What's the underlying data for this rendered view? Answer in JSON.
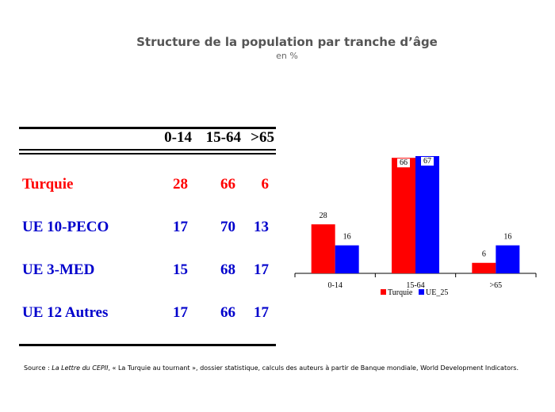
{
  "title": "Structure de la population par tranche d’âge",
  "subtitle": "en %",
  "table": {
    "headers": [
      "0-14",
      "15-64",
      ">65"
    ],
    "rows": [
      {
        "label": "Turquie",
        "values": [
          "28",
          "66",
          "6"
        ],
        "color": "#ff0000"
      },
      {
        "label": "UE 10-PECO",
        "values": [
          "17",
          "70",
          "13"
        ],
        "color": "#0000cc"
      },
      {
        "label": "UE 3-MED",
        "values": [
          "15",
          "68",
          "17"
        ],
        "color": "#0000cc"
      },
      {
        "label": "UE 12 Autres",
        "values": [
          "17",
          "66",
          "17"
        ],
        "color": "#0000cc"
      }
    ]
  },
  "chart_data": {
    "type": "bar",
    "categories": [
      "0-14",
      "15-64",
      ">65"
    ],
    "series": [
      {
        "name": "Turquie",
        "values": [
          28,
          66,
          6
        ],
        "color": "#ff0000"
      },
      {
        "name": "UE_25",
        "values": [
          16,
          67,
          16
        ],
        "color": "#0000ff"
      }
    ],
    "ylim": [
      0,
      67
    ],
    "legend": "bottom",
    "grid": false
  },
  "source": {
    "prefix": "Source : ",
    "italic": "La Lettre du CEPII",
    "rest": ", « La Turquie au tournant », dossier statistique, calculs des auteurs à partir de Banque mondiale, World Development Indicators."
  }
}
